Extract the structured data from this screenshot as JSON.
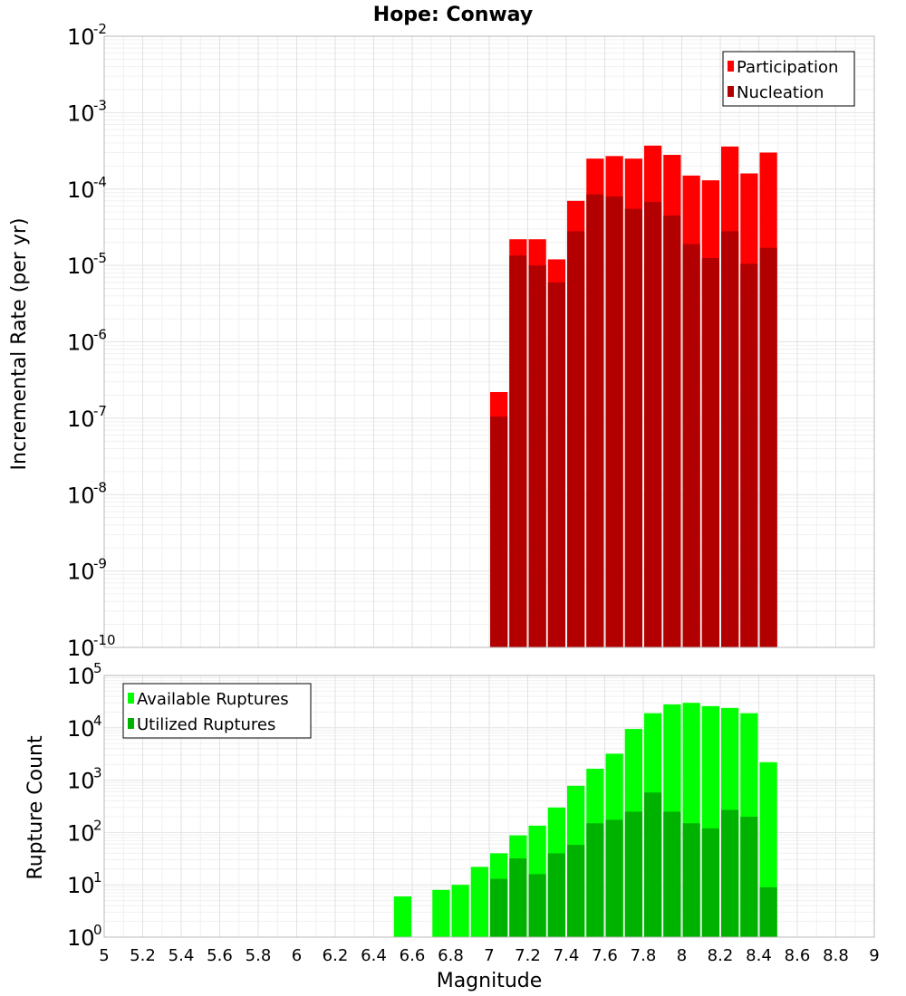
{
  "chart_data": [
    {
      "type": "bar",
      "title": "Hope: Conway",
      "ylabel": "Incremental Rate (per yr)",
      "xlabel": "",
      "yscale": "log",
      "ylim": [
        1e-10,
        0.01
      ],
      "xlim": [
        5,
        9
      ],
      "grid": true,
      "legend_position": "top-right",
      "x": [
        7.0,
        7.1,
        7.2,
        7.3,
        7.4,
        7.5,
        7.6,
        7.7,
        7.8,
        7.9,
        8.0,
        8.1,
        8.2,
        8.3,
        8.4
      ],
      "series": [
        {
          "name": "Participation",
          "color": "#ff0000",
          "values": [
            2.2e-07,
            2.2e-05,
            2.2e-05,
            1.2e-05,
            7e-05,
            0.00025,
            0.00027,
            0.00025,
            0.00037,
            0.00028,
            0.00015,
            0.00013,
            0.00036,
            0.00016,
            0.0003
          ]
        },
        {
          "name": "Nucleation",
          "color": "#b20000",
          "values": [
            1.05e-07,
            1.35e-05,
            1e-05,
            6e-06,
            2.8e-05,
            8.5e-05,
            8e-05,
            5.5e-05,
            6.8e-05,
            4.5e-05,
            1.9e-05,
            1.25e-05,
            2.8e-05,
            1.05e-05,
            1.7e-05
          ]
        }
      ]
    },
    {
      "type": "bar",
      "title": "",
      "ylabel": "Rupture Count",
      "xlabel": "Magnitude",
      "yscale": "log",
      "ylim": [
        1,
        100000.0
      ],
      "xlim": [
        5,
        9
      ],
      "grid": true,
      "legend_position": "top-left",
      "x": [
        6.5,
        6.7,
        6.8,
        6.9,
        7.0,
        7.1,
        7.2,
        7.3,
        7.4,
        7.5,
        7.6,
        7.7,
        7.8,
        7.9,
        8.0,
        8.1,
        8.2,
        8.3,
        8.4
      ],
      "series": [
        {
          "name": "Available Ruptures",
          "color": "#00ff00",
          "values": [
            6,
            8,
            10,
            22,
            40,
            88,
            135,
            300,
            780,
            1650,
            3200,
            9500,
            19000,
            28000,
            30000,
            26000,
            24000,
            19000,
            2200
          ]
        },
        {
          "name": "Utilized Ruptures",
          "color": "#00b200",
          "values": [
            0,
            0,
            0,
            0,
            13,
            32,
            16,
            40,
            58,
            150,
            175,
            250,
            580,
            250,
            150,
            120,
            270,
            200,
            9
          ]
        }
      ]
    }
  ],
  "shared_xticks": [
    "5",
    "5.2",
    "5.4",
    "5.6",
    "5.8",
    "6",
    "6.2",
    "6.4",
    "6.6",
    "6.8",
    "7",
    "7.2",
    "7.4",
    "7.6",
    "7.8",
    "8",
    "8.2",
    "8.4",
    "8.6",
    "8.8",
    "9"
  ],
  "top_yticks": [
    {
      "base": "10",
      "exp": "-10"
    },
    {
      "base": "10",
      "exp": "-9"
    },
    {
      "base": "10",
      "exp": "-8"
    },
    {
      "base": "10",
      "exp": "-7"
    },
    {
      "base": "10",
      "exp": "-6"
    },
    {
      "base": "10",
      "exp": "-5"
    },
    {
      "base": "10",
      "exp": "-4"
    },
    {
      "base": "10",
      "exp": "-3"
    },
    {
      "base": "10",
      "exp": "-2"
    }
  ],
  "bottom_yticks": [
    {
      "base": "10",
      "exp": "0"
    },
    {
      "base": "10",
      "exp": "1"
    },
    {
      "base": "10",
      "exp": "2"
    },
    {
      "base": "10",
      "exp": "3"
    },
    {
      "base": "10",
      "exp": "4"
    },
    {
      "base": "10",
      "exp": "5"
    }
  ]
}
